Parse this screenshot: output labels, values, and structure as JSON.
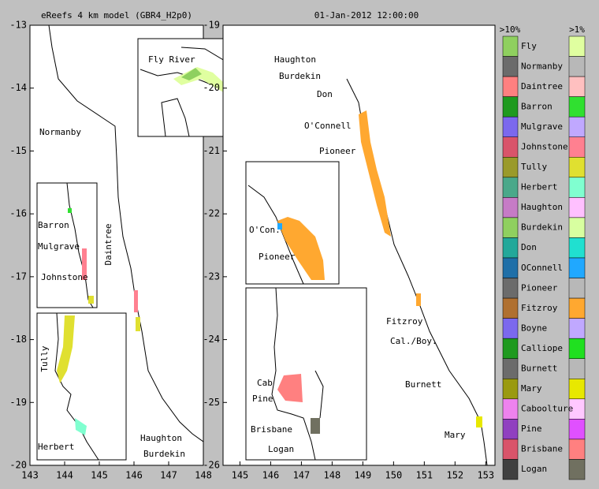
{
  "panels": [
    {
      "title": "eReefs 4 km model (GBR4_H2p0)",
      "xlim": [
        143,
        148
      ],
      "ylim": [
        -20,
        -13
      ],
      "xticks": [
        143,
        144,
        145,
        146,
        147,
        148
      ],
      "yticks": [
        -20,
        -19,
        -18,
        -17,
        -16,
        -15,
        -14,
        -13
      ],
      "labels": [
        "Normanby",
        "Daintree",
        "Haughton",
        "Burdekin",
        "Fly River",
        "Barron",
        "Mulgrave",
        "Johnstone",
        "Tully",
        "Herbert"
      ]
    },
    {
      "title": "01-Jan-2012 12:00:00",
      "xlim": [
        144.45,
        153.3
      ],
      "ylim": [
        -26,
        -19
      ],
      "xticks": [
        145,
        146,
        147,
        148,
        149,
        150,
        151,
        152,
        153
      ],
      "yticks": [
        -26,
        -25,
        -24,
        -23,
        -22,
        -21,
        -20,
        -19
      ],
      "labels": [
        "Haughton",
        "Burdekin",
        "Don",
        "O'Connell",
        "Pioneer",
        "Fitzroy",
        "Cal./Boy.",
        "Burnett",
        "Mary",
        "O'Con.",
        "Pioneer",
        "Cab",
        "Pine",
        "Brisbane",
        "Logan"
      ]
    }
  ],
  "legend": {
    "headers": [
      ">10%",
      ">1%"
    ],
    "rivers": [
      {
        "name": "Fly",
        "color_10": "#8fd05f",
        "color_1": "#e0ffa0"
      },
      {
        "name": "Normanby",
        "color_10": "#6b6b6b",
        "color_1": "#b8b8b8"
      },
      {
        "name": "Daintree",
        "color_10": "#ff8080",
        "color_1": "#ffc0c0"
      },
      {
        "name": "Barron",
        "color_10": "#1f9a1f",
        "color_1": "#30e030"
      },
      {
        "name": "Mulgrave",
        "color_10": "#7b68ee",
        "color_1": "#c0a8ff"
      },
      {
        "name": "Johnstone",
        "color_10": "#d9546a",
        "color_1": "#ff8090"
      },
      {
        "name": "Tully",
        "color_10": "#9a9a2a",
        "color_1": "#e0e030"
      },
      {
        "name": "Herbert",
        "color_10": "#4aa88a",
        "color_1": "#80ffd0"
      },
      {
        "name": "Haughton",
        "color_10": "#c67bc6",
        "color_1": "#ffc0ff"
      },
      {
        "name": "Burdekin",
        "color_10": "#8fd05f",
        "color_1": "#d8ffa0"
      },
      {
        "name": "Don",
        "color_10": "#22a89a",
        "color_1": "#20e0d0"
      },
      {
        "name": "OConnell",
        "color_10": "#1f6fa8",
        "color_1": "#20a8ff"
      },
      {
        "name": "Pioneer",
        "color_10": "#6b6b6b",
        "color_1": "#b8b8b8"
      },
      {
        "name": "Fitzroy",
        "color_10": "#b07030",
        "color_1": "#ffa830"
      },
      {
        "name": "Boyne",
        "color_10": "#7b68ee",
        "color_1": "#c0a8ff"
      },
      {
        "name": "Calliope",
        "color_10": "#1f9a1f",
        "color_1": "#20e020"
      },
      {
        "name": "Burnett",
        "color_10": "#6b6b6b",
        "color_1": "#b8b8b8"
      },
      {
        "name": "Mary",
        "color_10": "#9a9a10",
        "color_1": "#e8e800"
      },
      {
        "name": "Caboolture",
        "color_10": "#ee82ee",
        "color_1": "#ffc8ff"
      },
      {
        "name": "Pine",
        "color_10": "#9040c0",
        "color_1": "#e050ff"
      },
      {
        "name": "Brisbane",
        "color_10": "#d9546a",
        "color_1": "#ff8080"
      },
      {
        "name": "Logan",
        "color_10": "#404040",
        "color_1": "#707060"
      }
    ]
  }
}
